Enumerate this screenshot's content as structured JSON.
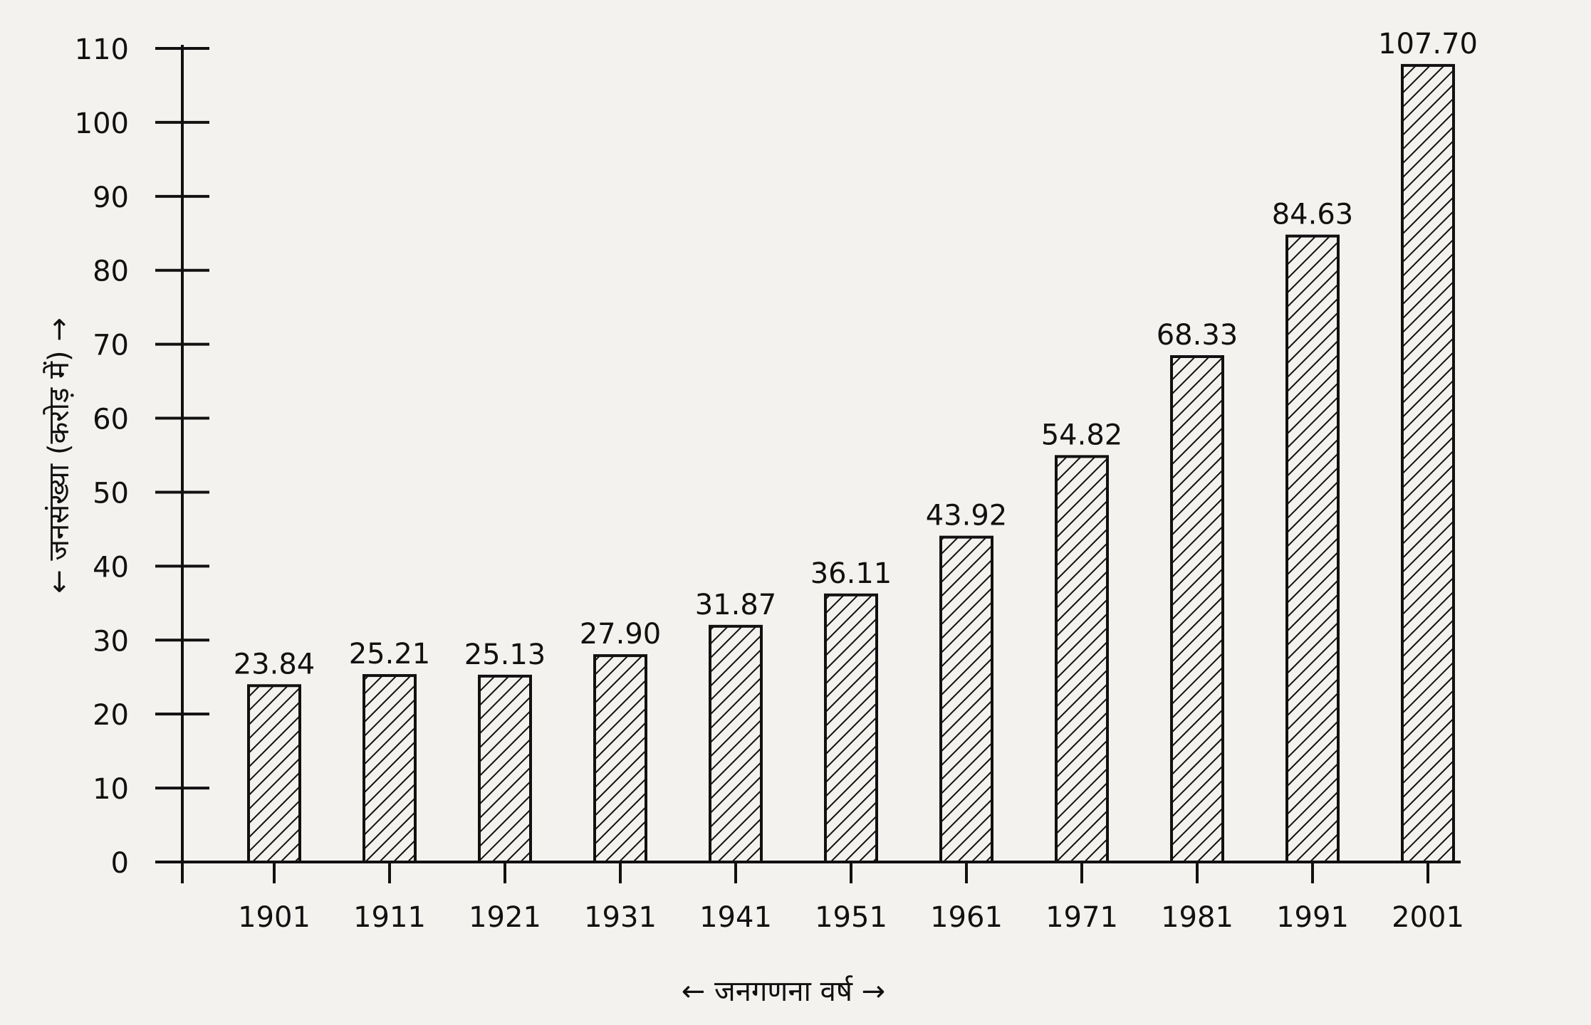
{
  "chart_data": {
    "type": "bar",
    "x_label": "← जनगणना वर्ष →",
    "y_label": "← जनसंख्या (करोड़ में) →",
    "categories": [
      "1901",
      "1911",
      "1921",
      "1931",
      "1941",
      "1951",
      "1961",
      "1971",
      "1981",
      "1991",
      "2001"
    ],
    "values": [
      23.84,
      25.21,
      25.13,
      27.9,
      31.87,
      36.11,
      43.92,
      54.82,
      68.33,
      84.63,
      107.7
    ],
    "value_labels": [
      "23.84",
      "25.21",
      "25.13",
      "27.90",
      "31.87",
      "36.11",
      "43.92",
      "54.82",
      "68.33",
      "84.63",
      "107.70"
    ],
    "color": "#111111",
    "ylim": [
      0,
      110
    ],
    "yticks": [
      0,
      10,
      20,
      30,
      40,
      50,
      60,
      70,
      80,
      90,
      100,
      110
    ]
  }
}
